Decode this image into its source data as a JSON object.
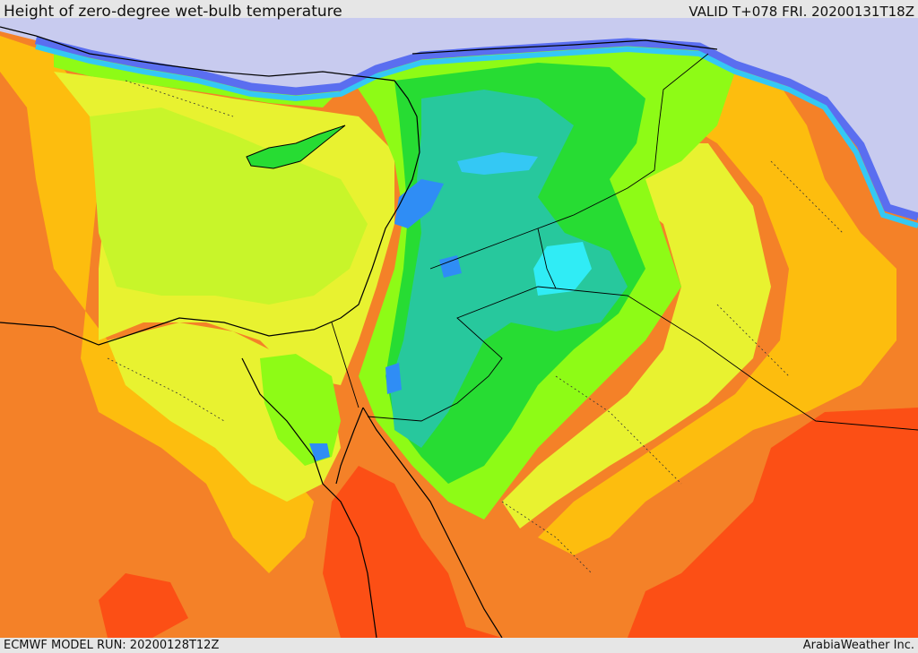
{
  "header": {
    "title": "Height of zero-degree wet-bulb temperature",
    "valid": "VALID T+078 FRI. 20200131T18Z"
  },
  "footer": {
    "model_run": "ECMWF MODEL RUN: 20200128T12Z",
    "credit": "ArabiaWeather Inc."
  },
  "map": {
    "region": "Eastern Mediterranean and Middle East",
    "field_colors": {
      "sea": "#c8cbef",
      "deep_blue": "#5a6ef0",
      "blue": "#2f8df5",
      "light_blue": "#34c8f4",
      "cyan": "#30ecf5",
      "teal": "#27c89d",
      "green": "#27dc33",
      "lime": "#8efb16",
      "yellow_green": "#c8f52a",
      "yellow": "#e8f230",
      "gold": "#fdbd0e",
      "orange": "#f48128",
      "red_orange": "#fc4f15"
    }
  }
}
